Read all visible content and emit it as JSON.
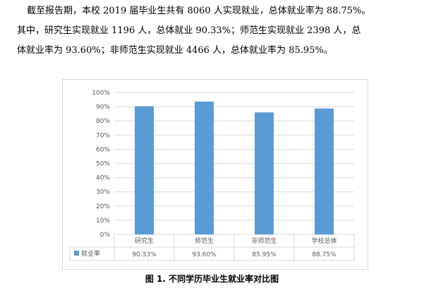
{
  "text": {
    "line1": "截至报告期，本校 2019 届毕业生共有 8060 人实现就业，总体就业率为 88.75%。",
    "line2": "其中，研究生实现就业 1196 人，总体就业 90.33%；师范生实现就业 2398 人，总",
    "line3": "体就业率为 93.60%；非师范生实现就业 4466 人，总体就业率为 85.95%。"
  },
  "caption": "图 1. 不同学历毕业生就业率对比图",
  "colors": {
    "bar": "#5b9bd5",
    "grid": "#d9d9d9",
    "axis_text": "#595959"
  },
  "chart_data": {
    "type": "bar",
    "categories": [
      "研究生",
      "师范生",
      "非师范生",
      "学校总体"
    ],
    "series": [
      {
        "name": "就业率",
        "values": [
          90.33,
          93.6,
          85.95,
          88.75
        ],
        "value_labels": [
          "90.33%",
          "93.60%",
          "85.95%",
          "88.75%"
        ]
      }
    ],
    "ylim": [
      0,
      100
    ],
    "yticks": [
      "0%",
      "10%",
      "20%",
      "30%",
      "40%",
      "50%",
      "60%",
      "70%",
      "80%",
      "90%",
      "100%"
    ],
    "grid": true,
    "legend": "data-table-left"
  }
}
